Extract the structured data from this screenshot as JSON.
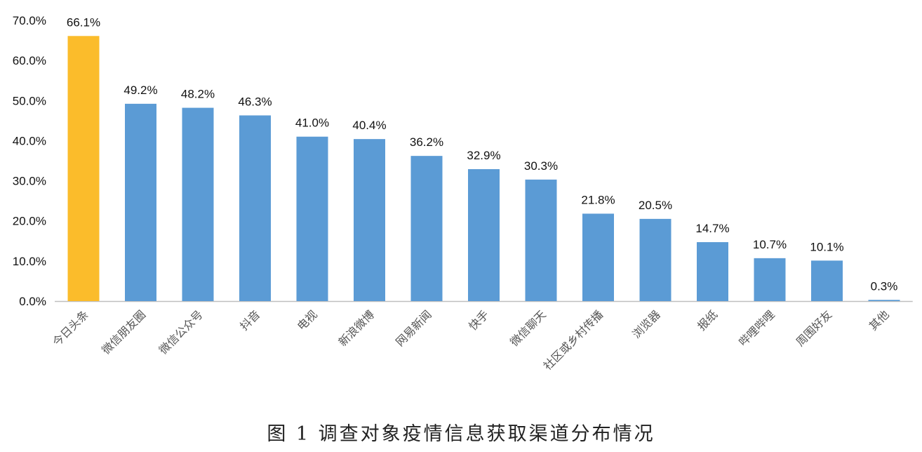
{
  "caption": "图 1 调查对象疫情信息获取渠道分布情况",
  "chart_data": {
    "type": "bar",
    "title": "",
    "xlabel": "",
    "ylabel": "",
    "ylim": [
      0,
      70
    ],
    "y_ticks": [
      "0.0%",
      "10.0%",
      "20.0%",
      "30.0%",
      "40.0%",
      "50.0%",
      "60.0%",
      "70.0%"
    ],
    "grid": false,
    "categories": [
      "今日头条",
      "微信朋友圈",
      "微信公众号",
      "抖音",
      "电视",
      "新浪微博",
      "网易新闻",
      "快手",
      "微信聊天",
      "社区或乡村传播",
      "浏览器",
      "报纸",
      "哔哩哔哩",
      "周围好友",
      "其他"
    ],
    "values": [
      66.1,
      49.2,
      48.2,
      46.3,
      41.0,
      40.4,
      36.2,
      32.9,
      30.3,
      21.8,
      20.5,
      14.7,
      10.7,
      10.1,
      0.3
    ],
    "data_labels": [
      "66.1%",
      "49.2%",
      "48.2%",
      "46.3%",
      "41.0%",
      "40.4%",
      "36.2%",
      "32.9%",
      "30.3%",
      "21.8%",
      "20.5%",
      "14.7%",
      "10.7%",
      "10.1%",
      "0.3%"
    ],
    "colors": {
      "default_bar": "#5B9BD5",
      "highlight_bar": "#FBBC2B",
      "axis": "#BFBFBF"
    },
    "highlight_index": 0
  }
}
